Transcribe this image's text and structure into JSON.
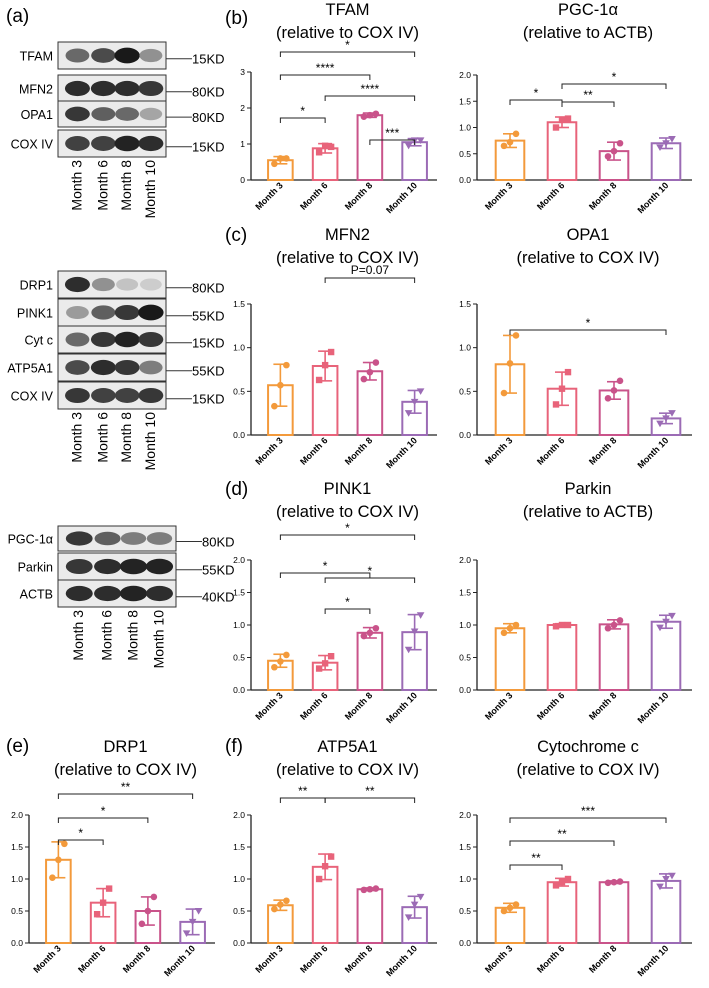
{
  "panel_letters": {
    "a": "(a)",
    "b": "(b)",
    "c": "(c)",
    "d": "(d)",
    "e": "(e)",
    "f": "(f)"
  },
  "western_blots": [
    {
      "rows": [
        {
          "label": "TFAM",
          "kd": "15KD",
          "bands": [
            0.55,
            0.7,
            0.95,
            0.35
          ]
        },
        {
          "label": "MFN2",
          "kd": "80KD",
          "bands": [
            0.85,
            0.85,
            0.85,
            0.8
          ]
        },
        {
          "label": "OPA1",
          "kd": "80KD",
          "bands": [
            0.8,
            0.6,
            0.55,
            0.25
          ]
        },
        {
          "label": "COX IV",
          "kd": "15KD",
          "bands": [
            0.75,
            0.75,
            0.9,
            0.85
          ]
        }
      ]
    },
    {
      "rows": [
        {
          "label": "DRP1",
          "kd": "80KD",
          "bands": [
            0.85,
            0.35,
            0.1,
            0.05
          ]
        },
        {
          "label": "PINK1",
          "kd": "55KD",
          "bands": [
            0.3,
            0.6,
            0.8,
            0.95
          ]
        },
        {
          "label": "Cyt c",
          "kd": "15KD",
          "bands": [
            0.55,
            0.8,
            0.9,
            0.8
          ]
        },
        {
          "label": "ATP5A1",
          "kd": "55KD",
          "bands": [
            0.7,
            0.85,
            0.8,
            0.45
          ]
        },
        {
          "label": "COX IV",
          "kd": "15KD",
          "bands": [
            0.8,
            0.75,
            0.75,
            0.8
          ]
        }
      ]
    },
    {
      "rows": [
        {
          "label": "PGC-1α",
          "kd": "80KD",
          "bands": [
            0.8,
            0.6,
            0.45,
            0.45
          ]
        },
        {
          "label": "Parkin",
          "kd": "55KD",
          "bands": [
            0.8,
            0.85,
            0.9,
            0.9
          ]
        },
        {
          "label": "ACTB",
          "kd": "40KD",
          "bands": [
            0.85,
            0.85,
            0.9,
            0.85
          ]
        }
      ]
    }
  ],
  "months": [
    "Month 3",
    "Month 6",
    "Month 8",
    "Month 10"
  ],
  "colors": {
    "Month 3": "#f39a3b",
    "Month 6": "#e8637a",
    "Month 8": "#c9538a",
    "Month 10": "#9b6bb5"
  },
  "chart_data": [
    {
      "id": "tfam",
      "type": "bar",
      "title": "TFAM",
      "subtitle": "(relative to COX IV)",
      "categories": [
        "Month 3",
        "Month 6",
        "Month 8",
        "Month 10"
      ],
      "values": [
        0.55,
        0.88,
        1.8,
        1.05
      ],
      "errors": [
        0.1,
        0.13,
        0.06,
        0.1
      ],
      "points": [
        [
          0.45,
          0.6,
          0.6
        ],
        [
          0.77,
          0.95,
          0.92
        ],
        [
          1.76,
          1.8,
          1.84
        ],
        [
          0.95,
          1.1,
          1.1
        ]
      ],
      "ylim": [
        0,
        3
      ],
      "yticks": [
        "0",
        "1",
        "2",
        "3"
      ],
      "ytick_values": [
        0,
        1,
        2,
        3
      ],
      "sig": [
        {
          "from": 0,
          "to": 3,
          "label": "*"
        },
        {
          "from": 0,
          "to": 2,
          "label": "****"
        },
        {
          "from": 1,
          "to": 3,
          "label": "****"
        },
        {
          "from": 0,
          "to": 1,
          "label": "*"
        },
        {
          "from": 2,
          "to": 3,
          "label": "***"
        }
      ]
    },
    {
      "id": "pgc",
      "type": "bar",
      "title": "PGC-1α",
      "subtitle": "(relative to ACTB)",
      "categories": [
        "Month 3",
        "Month 6",
        "Month 8",
        "Month 10"
      ],
      "values": [
        0.75,
        1.1,
        0.55,
        0.7
      ],
      "errors": [
        0.13,
        0.1,
        0.17,
        0.1
      ],
      "points": [
        [
          0.65,
          0.72,
          0.88
        ],
        [
          1.0,
          1.15,
          1.17
        ],
        [
          0.45,
          0.55,
          0.7
        ],
        [
          0.62,
          0.7,
          0.78
        ]
      ],
      "ylim": [
        0,
        2.0
      ],
      "yticks": [
        "0.0",
        "0.5",
        "1.0",
        "1.5",
        "2.0"
      ],
      "ytick_values": [
        0,
        0.5,
        1,
        1.5,
        2
      ],
      "sig": [
        {
          "from": 1,
          "to": 3,
          "label": "*"
        },
        {
          "from": 0,
          "to": 1,
          "label": "*"
        },
        {
          "from": 1,
          "to": 2,
          "label": "**"
        }
      ]
    },
    {
      "id": "mfn2",
      "type": "bar",
      "title": "MFN2",
      "subtitle": "(relative to COX IV)",
      "categories": [
        "Month 3",
        "Month 6",
        "Month 8",
        "Month 10"
      ],
      "values": [
        0.57,
        0.79,
        0.73,
        0.38
      ],
      "errors": [
        0.24,
        0.17,
        0.1,
        0.13
      ],
      "points": [
        [
          0.33,
          0.57,
          0.8
        ],
        [
          0.63,
          0.8,
          0.95
        ],
        [
          0.64,
          0.72,
          0.83
        ],
        [
          0.25,
          0.38,
          0.5
        ]
      ],
      "ylim": [
        0,
        1.5
      ],
      "yticks": [
        "0.0",
        "0.5",
        "1.0",
        "1.5"
      ],
      "ytick_values": [
        0,
        0.5,
        1,
        1.5
      ],
      "sig": [
        {
          "from": 1,
          "to": 3,
          "label": "P=0.07"
        }
      ]
    },
    {
      "id": "opa1",
      "type": "bar",
      "title": "OPA1",
      "subtitle": "(relative to COX IV)",
      "categories": [
        "Month 3",
        "Month 6",
        "Month 8",
        "Month 10"
      ],
      "values": [
        0.81,
        0.53,
        0.51,
        0.19
      ],
      "errors": [
        0.33,
        0.19,
        0.1,
        0.06
      ],
      "points": [
        [
          0.48,
          0.82,
          1.14
        ],
        [
          0.35,
          0.53,
          0.72
        ],
        [
          0.42,
          0.51,
          0.62
        ],
        [
          0.13,
          0.19,
          0.25
        ]
      ],
      "ylim": [
        0,
        1.5
      ],
      "yticks": [
        "0.0",
        "0.5",
        "1.0",
        "1.5"
      ],
      "ytick_values": [
        0,
        0.5,
        1,
        1.5
      ],
      "sig": [
        {
          "from": 0,
          "to": 3,
          "label": "*"
        }
      ]
    },
    {
      "id": "pink1",
      "type": "bar",
      "title": "PINK1",
      "subtitle": "(relative to COX IV)",
      "categories": [
        "Month 3",
        "Month 6",
        "Month 8",
        "Month 10"
      ],
      "values": [
        0.45,
        0.42,
        0.88,
        0.89
      ],
      "errors": [
        0.1,
        0.11,
        0.08,
        0.27
      ],
      "points": [
        [
          0.35,
          0.44,
          0.54
        ],
        [
          0.33,
          0.41,
          0.52
        ],
        [
          0.83,
          0.88,
          0.95
        ],
        [
          0.62,
          0.9,
          1.15
        ]
      ],
      "ylim": [
        0,
        2.0
      ],
      "yticks": [
        "0.0",
        "0.5",
        "1.0",
        "1.5",
        "2.0"
      ],
      "ytick_values": [
        0,
        0.5,
        1,
        1.5,
        2
      ],
      "sig": [
        {
          "from": 0,
          "to": 3,
          "label": "*"
        },
        {
          "from": 0,
          "to": 2,
          "label": "*"
        },
        {
          "from": 1,
          "to": 3,
          "label": "*"
        },
        {
          "from": 1,
          "to": 2,
          "label": "*"
        }
      ]
    },
    {
      "id": "parkin",
      "type": "bar",
      "title": "Parkin",
      "subtitle": "(relative to ACTB)",
      "categories": [
        "Month 3",
        "Month 6",
        "Month 8",
        "Month 10"
      ],
      "values": [
        0.95,
        1.0,
        1.01,
        1.05
      ],
      "errors": [
        0.07,
        0.02,
        0.07,
        0.1
      ],
      "points": [
        [
          0.88,
          0.95,
          1.0
        ],
        [
          0.98,
          1.0,
          1.0
        ],
        [
          0.95,
          1.0,
          1.07
        ],
        [
          0.96,
          1.05,
          1.14
        ]
      ],
      "ylim": [
        0,
        2.0
      ],
      "yticks": [
        "0.0",
        "0.5",
        "1.0",
        "1.5",
        "2.0"
      ],
      "ytick_values": [
        0,
        0.5,
        1,
        1.5,
        2
      ],
      "sig": []
    },
    {
      "id": "drp1",
      "type": "bar",
      "title": "DRP1",
      "subtitle": "(relative to COX IV)",
      "categories": [
        "Month 3",
        "Month 6",
        "Month 8",
        "Month 10"
      ],
      "values": [
        1.3,
        0.63,
        0.5,
        0.33
      ],
      "errors": [
        0.28,
        0.22,
        0.22,
        0.2
      ],
      "points": [
        [
          1.02,
          1.3,
          1.55
        ],
        [
          0.45,
          0.63,
          0.85
        ],
        [
          0.3,
          0.5,
          0.72
        ],
        [
          0.15,
          0.33,
          0.5
        ]
      ],
      "ylim": [
        0,
        2.0
      ],
      "yticks": [
        "0.0",
        "0.5",
        "1.0",
        "1.5",
        "2.0"
      ],
      "ytick_values": [
        0,
        0.5,
        1,
        1.5,
        2
      ],
      "sig": [
        {
          "from": 0,
          "to": 3,
          "label": "**"
        },
        {
          "from": 0,
          "to": 2,
          "label": "*"
        },
        {
          "from": 0,
          "to": 1,
          "label": "*"
        }
      ]
    },
    {
      "id": "atp5a1",
      "type": "bar",
      "title": "ATP5A1",
      "subtitle": "(relative to COX IV)",
      "categories": [
        "Month 3",
        "Month 6",
        "Month 8",
        "Month 10"
      ],
      "values": [
        0.59,
        1.19,
        0.84,
        0.56
      ],
      "errors": [
        0.08,
        0.2,
        0.02,
        0.17
      ],
      "points": [
        [
          0.53,
          0.6,
          0.66
        ],
        [
          1.0,
          1.2,
          1.35
        ],
        [
          0.83,
          0.84,
          0.85
        ],
        [
          0.4,
          0.6,
          0.72
        ]
      ],
      "ylim": [
        0,
        2.0
      ],
      "yticks": [
        "0.0",
        "0.5",
        "1.0",
        "1.5",
        "2.0"
      ],
      "ytick_values": [
        0,
        0.5,
        1,
        1.5,
        2
      ],
      "sig": [
        {
          "from": 0,
          "to": 1,
          "label": "**"
        },
        {
          "from": 1,
          "to": 3,
          "label": "**"
        }
      ]
    },
    {
      "id": "cytc",
      "type": "bar",
      "title": "Cytochrome c",
      "subtitle": "(relative to COX IV)",
      "categories": [
        "Month 3",
        "Month 6",
        "Month 8",
        "Month 10"
      ],
      "values": [
        0.55,
        0.95,
        0.95,
        0.97
      ],
      "errors": [
        0.07,
        0.06,
        0.02,
        0.11
      ],
      "points": [
        [
          0.5,
          0.55,
          0.6
        ],
        [
          0.9,
          0.95,
          1.0
        ],
        [
          0.94,
          0.95,
          0.96
        ],
        [
          0.88,
          1.0,
          1.05
        ]
      ],
      "ylim": [
        0,
        2.0
      ],
      "yticks": [
        "0.0",
        "0.5",
        "1.0",
        "1.5",
        "2.0"
      ],
      "ytick_values": [
        0,
        0.5,
        1,
        1.5,
        2
      ],
      "sig": [
        {
          "from": 0,
          "to": 3,
          "label": "***"
        },
        {
          "from": 0,
          "to": 2,
          "label": "**"
        },
        {
          "from": 0,
          "to": 1,
          "label": "**"
        }
      ]
    }
  ]
}
